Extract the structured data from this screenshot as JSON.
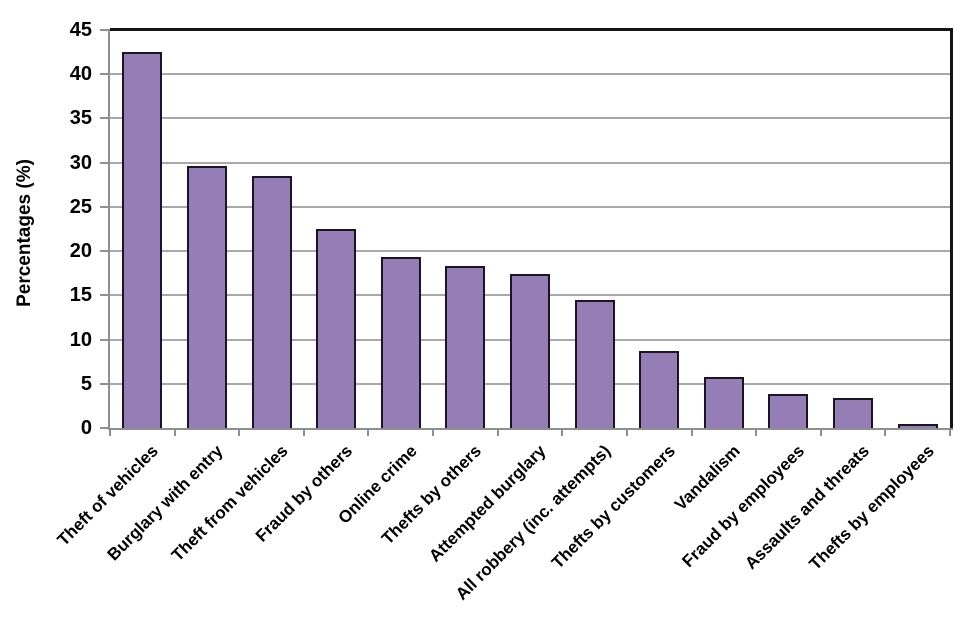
{
  "chart_data": {
    "type": "bar",
    "title": "",
    "xlabel": "",
    "ylabel": "Percentages (%)",
    "categories": [
      "Theft of vehicles",
      "Burglary with entry",
      "Theft from vehicles",
      "Fraud by others",
      "Online crime",
      "Thefts by others",
      "Attempted burglary",
      "All robbery (inc. attempts)",
      "Thefts by customers",
      "Vandalism",
      "Fraud by employees",
      "Assaults and threats",
      "Thefts by employees"
    ],
    "values": [
      42.5,
      29.6,
      28.5,
      22.5,
      19.3,
      18.3,
      17.4,
      14.5,
      8.7,
      5.8,
      3.9,
      3.4,
      0.5
    ],
    "ylim": [
      0,
      45
    ],
    "yticks": [
      0,
      5,
      10,
      15,
      20,
      25,
      30,
      35,
      40,
      45
    ],
    "grid": true,
    "legend": "none",
    "colors": {
      "bar_fill": "#957DB5",
      "bar_border": "#1c1423",
      "gridline": "#a9a9a9",
      "axis": "#8f8f8f",
      "frame": "#141414",
      "text": "#000000",
      "background": "#ffffff"
    }
  }
}
